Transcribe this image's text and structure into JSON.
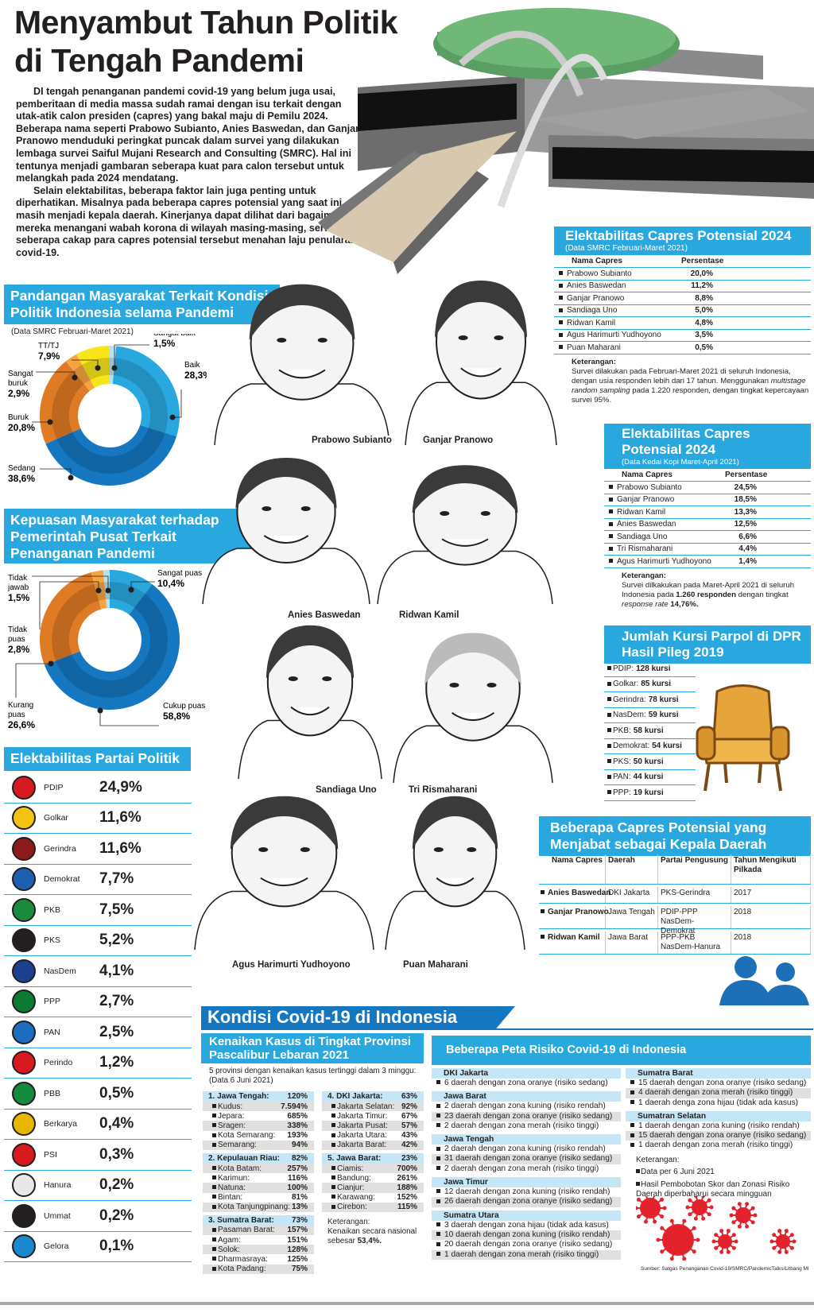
{
  "title_line1": "Menyambut Tahun Politik",
  "title_line2": "di Tengah Pandemi",
  "intro": [
    "DI tengah penanganan pandemi covid-19 yang belum juga usai, pemberitaan di media massa sudah ramai dengan isu terkait dengan utak-atik calon presiden (capres) yang bakal maju di Pemilu 2024. Beberapa nama seperti Prabowo Subianto, Anies Baswedan, dan Ganjar Pranowo menduduki peringkat puncak dalam survei yang dilakukan lembaga survei Saiful Mujani Research and Consulting (SMRC). Hal ini tentunya menjadi gambaran seberapa kuat para calon tersebut untuk melangkah pada 2024 mendatang.",
    "Selain elektabilitas, beberapa faktor lain juga penting untuk diperhatikan. Misalnya pada beberapa capres potensial yang saat ini masih menjadi kepala daerah. Kinerjanya dapat dilihat dari bagaimana mereka menangani wabah korona di wilayah masing-masing, serta seberapa cakap para capres potensial tersebut menahan laju penularan covid-19."
  ],
  "chart_data": [
    {
      "type": "pie",
      "title": "Pandangan Masyarakat Terkait Kondisi Politik Indonesia selama Pandemi",
      "subtitle": "(Data SMRC Februari-Maret 2021)",
      "categories": [
        "Sangat baik",
        "Baik",
        "Sedang",
        "Buruk",
        "Sangat buruk",
        "TT/TJ"
      ],
      "values": [
        1.5,
        28.3,
        38.6,
        20.8,
        2.9,
        7.9
      ],
      "labels": [
        "1,5%",
        "28,3%",
        "38,6%",
        "20,8%",
        "2,9%",
        "7,9%"
      ],
      "colors": [
        "#b9e0f2",
        "#29a8e0",
        "#1577c0",
        "#e07b25",
        "#f5a540",
        "#f7e51a"
      ]
    },
    {
      "type": "pie",
      "title": "Kepuasan Masyarakat terhadap Pemerintah Pusat Terkait Penanganan Pandemi",
      "categories": [
        "Sangat puas",
        "Cukup puas",
        "Kurang puas",
        "Tidak puas",
        "Tidak jawab"
      ],
      "values": [
        10.4,
        58.8,
        26.6,
        2.8,
        1.5
      ],
      "labels": [
        "10,4%",
        "58,8%",
        "26,6%",
        "2,8%",
        "1,5%"
      ],
      "colors": [
        "#29a8e0",
        "#1577c0",
        "#e07b25",
        "#f5a540",
        "#b9e0f2"
      ]
    }
  ],
  "partai": {
    "title": "Elektabilitas Partai Politik",
    "items": [
      {
        "name": "PDIP",
        "value": "24,9%",
        "color": "#d71920",
        "abbr": "PDIP"
      },
      {
        "name": "Golkar",
        "value": "11,6%",
        "color": "#f2c40f",
        "abbr": "GLK"
      },
      {
        "name": "Gerindra",
        "value": "11,6%",
        "color": "#8b1a1a",
        "abbr": "GRD"
      },
      {
        "name": "Demokrat",
        "value": "7,7%",
        "color": "#1d5fae",
        "abbr": "PD"
      },
      {
        "name": "PKB",
        "value": "7,5%",
        "color": "#1a8a3c",
        "abbr": "PKB"
      },
      {
        "name": "PKS",
        "value": "5,2%",
        "color": "#231f20",
        "abbr": "PKS"
      },
      {
        "name": "NasDem",
        "value": "4,1%",
        "color": "#1d3f8f",
        "abbr": "ND"
      },
      {
        "name": "PPP",
        "value": "2,7%",
        "color": "#0c7a33",
        "abbr": "PPP"
      },
      {
        "name": "PAN",
        "value": "2,5%",
        "color": "#1c6cc0",
        "abbr": "PAN"
      },
      {
        "name": "Perindo",
        "value": "1,2%",
        "color": "#d71920",
        "abbr": "PRN"
      },
      {
        "name": "PBB",
        "value": "0,5%",
        "color": "#138a3e",
        "abbr": "PBB"
      },
      {
        "name": "Berkarya",
        "value": "0,4%",
        "color": "#e6b800",
        "abbr": "BKR"
      },
      {
        "name": "PSI",
        "value": "0,3%",
        "color": "#d71920",
        "abbr": "PSI"
      },
      {
        "name": "Hanura",
        "value": "0,2%",
        "color": "#e8e8e8",
        "abbr": "HNR"
      },
      {
        "name": "Ummat",
        "value": "0,2%",
        "color": "#231f20",
        "abbr": "UMT"
      },
      {
        "name": "Gelora",
        "value": "0,1%",
        "color": "#1a8ad0",
        "abbr": "GLR"
      }
    ]
  },
  "smrc": {
    "title": "Elektabilitas Capres Potensial 2024",
    "subtitle": "(Data SMRC Februari-Maret 2021)",
    "col1": "Nama Capres",
    "col2": "Persentase",
    "rows": [
      {
        "name": "Prabowo Subianto",
        "value": "20,0%"
      },
      {
        "name": "Anies Baswedan",
        "value": "11,2%"
      },
      {
        "name": "Ganjar Pranowo",
        "value": "8,8%"
      },
      {
        "name": "Sandiaga Uno",
        "value": "5,0%"
      },
      {
        "name": "Ridwan Kamil",
        "value": "4,8%"
      },
      {
        "name": "Agus Harimurti Yudhoyono",
        "value": "3,5%"
      },
      {
        "name": "Puan Maharani",
        "value": "0,5%"
      }
    ],
    "note_label": "Keterangan:",
    "note_a": "Survei dilakukan pada Februari-Maret 2021 di seluruh Indonesia, dengan usia responden lebih dari 17 tahun. Menggunakan ",
    "note_em": "multistage random sampling",
    "note_b": " pada 1.220 responden, dengan tingkat kepercayaan survei 95%."
  },
  "kedai": {
    "title": "Elektabilitas Capres Potensial 2024",
    "subtitle": "(Data Kedai Kopi Maret-April 2021)",
    "col1": "Nama Capres",
    "col2": "Persentase",
    "rows": [
      {
        "name": "Prabowo Subianto",
        "value": "24,5%"
      },
      {
        "name": "Ganjar Pranowo",
        "value": "18,5%"
      },
      {
        "name": "Ridwan Kamil",
        "value": "13,3%"
      },
      {
        "name": "Anies Baswedan",
        "value": "12,5%"
      },
      {
        "name": "Sandiaga Uno",
        "value": "6,6%"
      },
      {
        "name": "Tri Rismaharani",
        "value": "4,4%"
      },
      {
        "name": "Agus Harimurti Yudhoyono",
        "value": "1,4%"
      }
    ],
    "note_label": "Keterangan:",
    "note_a": "Survei dilkakukan pada Maret-April 2021 di seluruh Indonesia pada ",
    "note_b1": "1.260 responden",
    "note_c": " dengan tingkat ",
    "note_em": "response rate",
    "note_b2": " 14,76%."
  },
  "kursi": {
    "title": "Jumlah Kursi Parpol di DPR Hasil Pileg 2019",
    "items": [
      {
        "party": "PDIP:",
        "seats": "128 kursi"
      },
      {
        "party": "Golkar:",
        "seats": "85 kursi"
      },
      {
        "party": "Gerindra:",
        "seats": "78 kursi"
      },
      {
        "party": "NasDem:",
        "seats": "59 kursi"
      },
      {
        "party": "PKB:",
        "seats": "58 kursi"
      },
      {
        "party": "Demokrat:",
        "seats": "54 kursi"
      },
      {
        "party": "PKS:",
        "seats": "50 kursi"
      },
      {
        "party": "PAN:",
        "seats": "44 kursi"
      },
      {
        "party": "PPP:",
        "seats": "19 kursi"
      }
    ]
  },
  "kepala": {
    "title": "Beberapa Capres Potensial yang Menjabat sebagai Kepala Daerah",
    "headers": [
      "Nama Capres",
      "Daerah",
      "Partai Pengusung",
      "Tahun Mengikuti Pilkada"
    ],
    "rows": [
      {
        "name": "Anies Baswedan",
        "daerah": "DKI Jakarta",
        "partai": "PKS-Gerindra",
        "tahun": "2017"
      },
      {
        "name": "Ganjar Pranowo",
        "daerah": "Jawa Tengah",
        "partai": "PDIP-PPP NasDem-Demokrat",
        "tahun": "2018"
      },
      {
        "name": "Ridwan Kamil",
        "daerah": "Jawa Barat",
        "partai": "PPP-PKB NasDem-Hanura",
        "tahun": "2018"
      }
    ]
  },
  "portraits": [
    "Prabowo Subianto",
    "Ganjar Pranowo",
    "Anies Baswedan",
    "Ridwan Kamil",
    "Sandiaga Uno",
    "Tri Rismaharani",
    "Agus Harimurti Yudhoyono",
    "Puan Maharani"
  ],
  "covid": {
    "title": "Kondisi Covid-19 di Indonesia",
    "kenaikan_title": "Kenaikan Kasus di Tingkat Provinsi Pascalibur Lebaran 2021",
    "kenaikan_sub": "5 provinsi dengan kenaikan kasus tertinggi dalam 3 minggu: (Data 6 Juni 2021)",
    "left": [
      {
        "name": "1. Jawa Tengah:",
        "value": "120%",
        "items": [
          [
            "Kudus:",
            "7.594%"
          ],
          [
            "Jepara:",
            "685%"
          ],
          [
            "Sragen:",
            "338%"
          ],
          [
            "Kota Semarang:",
            "193%"
          ],
          [
            "Semarang:",
            "94%"
          ]
        ]
      },
      {
        "name": "2. Kepulauan Riau:",
        "value": "82%",
        "items": [
          [
            "Kota Batam:",
            "257%"
          ],
          [
            "Karimun:",
            "116%"
          ],
          [
            "Natuna:",
            "100%"
          ],
          [
            "Bintan:",
            "81%"
          ],
          [
            "Kota Tanjungpinang:",
            "13%"
          ]
        ]
      },
      {
        "name": "3. Sumatra Barat:",
        "value": "73%",
        "items": [
          [
            "Pasaman Barat:",
            "157%"
          ],
          [
            "Agam:",
            "151%"
          ],
          [
            "Solok:",
            "128%"
          ],
          [
            "Dharmasraya:",
            "125%"
          ],
          [
            "Kota Padang:",
            "75%"
          ]
        ]
      }
    ],
    "right": [
      {
        "name": "4. DKI Jakarta:",
        "value": "63%",
        "items": [
          [
            "Jakarta Selatan:",
            "92%"
          ],
          [
            "Jakarta Timur:",
            "67%"
          ],
          [
            "Jakarta Pusat:",
            "57%"
          ],
          [
            "Jakarta Utara:",
            "43%"
          ],
          [
            "Jakarta Barat:",
            "42%"
          ]
        ]
      },
      {
        "name": "5. Jawa Barat:",
        "value": "23%",
        "items": [
          [
            "Ciamis:",
            "700%"
          ],
          [
            "Bandung:",
            "261%"
          ],
          [
            "Cianjur:",
            "188%"
          ],
          [
            "Karawang:",
            "152%"
          ],
          [
            "Cirebon:",
            "115%"
          ]
        ]
      }
    ],
    "kenaikan_note_label": "Keterangan:",
    "kenaikan_note": "Kenaikan secara nasional sebesar",
    "kenaikan_note_value": "53,4%.",
    "peta_title": "Beberapa Peta Risiko Covid-19 di Indonesia",
    "peta_left": [
      {
        "region": "DKI Jakarta",
        "items": [
          "6 daerah dengan zona oranye (risiko sedang)"
        ]
      },
      {
        "region": "Jawa Barat",
        "items": [
          "2 daerah dengan zona kuning (risiko rendah)",
          "23 daerah dengan zona oranye (risiko sedang)",
          "2 daerah dengan zona merah (risiko tinggi)"
        ]
      },
      {
        "region": "Jawa Tengah",
        "items": [
          "2 daerah dengan zona kuning (risiko rendah)",
          "31 daerah dengan zona oranye (risiko sedang)",
          "2 daerah dengan zona merah (risiko tinggi)"
        ]
      },
      {
        "region": "Jawa Timur",
        "items": [
          "12 daerah dengan zona kuning (risiko rendah)",
          "26 daerah dengan zona oranye (risiko sedang)"
        ]
      },
      {
        "region": "Sumatra Utara",
        "items": [
          "3 daerah dengan zona hijau (tidak ada kasus)",
          "10 daerah dengan zona kuning (risiko rendah)",
          "20 daerah dengan zona oranye (risiko sedang)",
          "1 daerah dengan zona merah (risiko tinggi)"
        ]
      }
    ],
    "peta_right": [
      {
        "region": "Sumatra Barat",
        "items": [
          "15 daerah dengan zona oranye (risiko sedang)",
          "4 daerah dengan zona merah (risiko tinggi)",
          "1 daerah denga zona hijau (tidak ada kasus)"
        ]
      },
      {
        "region": "Sumatran Selatan",
        "items": [
          "1 daerah dengan zona kuning (risiko rendah)",
          "15 daerah dengan zona oranye (risiko sedang)",
          "1 daerah dengan zona merah (risiko tinggi)"
        ]
      }
    ],
    "peta_note_label": "Keterangan:",
    "peta_notes": [
      "Data per 6 Juni 2021",
      "Hasil Pembobotan Skor dan Zonasi Risiko Daerah diperbaharui secara mingguan"
    ],
    "source": "Sumber: Satgas Penanganan Covid-19/SMRC/PandemicTalks/Litbang MI"
  },
  "colors": {
    "accent": "#29a8e0",
    "dark_blue": "#1577c0",
    "orange": "#e07b25",
    "virus": "#e3222b"
  }
}
